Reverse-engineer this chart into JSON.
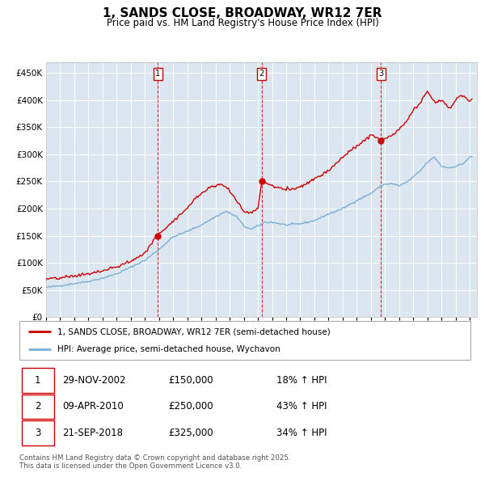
{
  "title": "1, SANDS CLOSE, BROADWAY, WR12 7ER",
  "subtitle": "Price paid vs. HM Land Registry's House Price Index (HPI)",
  "ytick_values": [
    0,
    50000,
    100000,
    150000,
    200000,
    250000,
    300000,
    350000,
    400000,
    450000
  ],
  "ylim": [
    0,
    470000
  ],
  "xlim_start": 1995.0,
  "xlim_end": 2025.5,
  "background_color": "#dce6f1",
  "line1_color": "#cc0000",
  "line2_color": "#7bafd4",
  "line1_label": "1, SANDS CLOSE, BROADWAY, WR12 7ER (semi-detached house)",
  "line2_label": "HPI: Average price, semi-detached house, Wychavon",
  "sales": [
    {
      "num": 1,
      "date": "29-NOV-2002",
      "price": 150000,
      "hpi_pct": "18% ↑ HPI",
      "x": 2002.91
    },
    {
      "num": 2,
      "date": "09-APR-2010",
      "price": 250000,
      "hpi_pct": "43% ↑ HPI",
      "x": 2010.27
    },
    {
      "num": 3,
      "date": "21-SEP-2018",
      "price": 325000,
      "hpi_pct": "34% ↑ HPI",
      "x": 2018.72
    }
  ],
  "footer": "Contains HM Land Registry data © Crown copyright and database right 2025.\nThis data is licensed under the Open Government Licence v3.0."
}
